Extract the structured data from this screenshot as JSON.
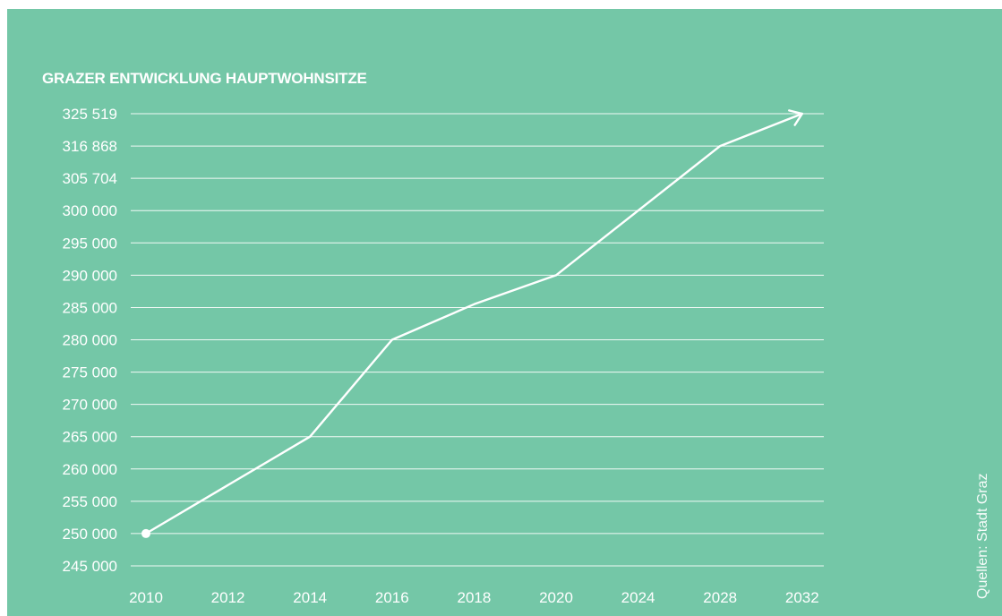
{
  "chart_data": {
    "type": "line",
    "title": "GRAZER ENTWICKLUNG HAUPTWOHNSITZE",
    "xlabel": "",
    "ylabel": "",
    "x_categories": [
      "2010",
      "2012",
      "2014",
      "2016",
      "2018",
      "2020",
      "2024",
      "2028",
      "2032"
    ],
    "y_categories": [
      "245 000",
      "250 000",
      "255 000",
      "260 000",
      "265 000",
      "270 000",
      "275 000",
      "280 000",
      "285 000",
      "290 000",
      "295 000",
      "300 000",
      "305 704",
      "316 868",
      "325 519"
    ],
    "series": [
      {
        "points": [
          {
            "x": "2010",
            "y": "250 000"
          },
          {
            "x": "2014",
            "y": "265 000"
          },
          {
            "x": "2016",
            "y": "280 000"
          },
          {
            "x": "2018",
            "y": "285 500"
          },
          {
            "x": "2020",
            "y": "290 000"
          },
          {
            "x": "2028",
            "y": "316 868"
          },
          {
            "x": "2032",
            "y": "325 519"
          }
        ],
        "start_marker": "dot",
        "end_marker": "arrow"
      }
    ],
    "grid": true,
    "legend": "none",
    "colors": {
      "background": "#74c7a7",
      "line": "#ffffff",
      "grid": "#ffffff",
      "text": "#ffffff"
    }
  },
  "source": "Quellen: Stadt Graz"
}
